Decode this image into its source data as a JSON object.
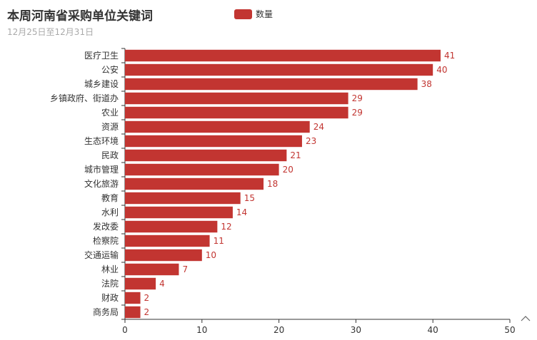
{
  "chart_data": {
    "type": "bar",
    "orientation": "horizontal",
    "title": "本周河南省采购单位关键词",
    "subtitle": "12月25日至12月31日",
    "categories": [
      "医疗卫生",
      "公安",
      "城乡建设",
      "乡镇政府、街道办",
      "农业",
      "资源",
      "生态环境",
      "民政",
      "城市管理",
      "文化旅游",
      "教育",
      "水利",
      "发改委",
      "检察院",
      "交通运输",
      "林业",
      "法院",
      "财政",
      "商务局"
    ],
    "series": [
      {
        "name": "数量",
        "values": [
          41,
          40,
          38,
          29,
          29,
          24,
          23,
          21,
          20,
          18,
          15,
          14,
          12,
          11,
          10,
          7,
          4,
          2,
          2
        ]
      }
    ],
    "xlim": [
      0,
      50
    ],
    "xticks": [
      0,
      10,
      20,
      30,
      40,
      50
    ],
    "xtick_labels": [
      "0",
      "10",
      "20",
      "30",
      "40",
      "50"
    ],
    "grid": false,
    "legend_position": "top",
    "data_labels": true
  },
  "colors": {
    "bar": "#c23531",
    "axis": "#333333",
    "title": "#333333",
    "subtitle": "#aaaaaa"
  },
  "toolbox": {
    "icon": "zoom-tool-icon"
  }
}
